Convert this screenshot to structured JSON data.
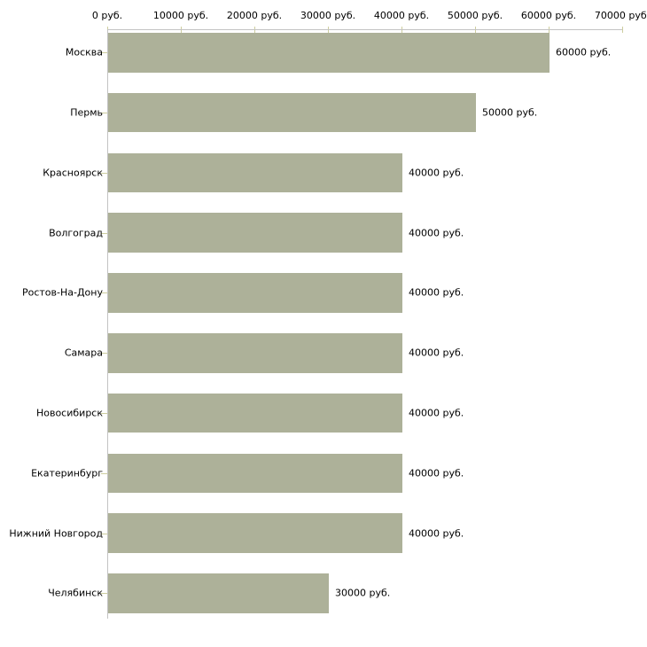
{
  "chart_data": {
    "type": "bar",
    "orientation": "horizontal",
    "title": "",
    "xlabel": "",
    "ylabel": "",
    "xlim": [
      0,
      70000
    ],
    "grid": false,
    "legend": false,
    "background": "#ffffff",
    "bar_color": "#adb199",
    "axis_line_color": "#c3c3c3",
    "tick_mark_color": "#cdcd9e",
    "text_color": "#000000",
    "x_ticks": [
      0,
      10000,
      20000,
      30000,
      40000,
      50000,
      60000,
      70000
    ],
    "x_tick_labels": [
      "0 руб.",
      "10000 руб.",
      "20000 руб.",
      "30000 руб.",
      "40000 руб.",
      "50000 руб.",
      "60000 руб.",
      "70000 руб."
    ],
    "categories": [
      "Москва",
      "Пермь",
      "Красноярск",
      "Волгоград",
      "Ростов-На-Дону",
      "Самара",
      "Новосибирск",
      "Екатеринбург",
      "Нижний Новгород",
      "Челябинск"
    ],
    "values": [
      60000,
      50000,
      40000,
      40000,
      40000,
      40000,
      40000,
      40000,
      40000,
      30000
    ],
    "value_labels": [
      "60000 руб.",
      "50000 руб.",
      "40000 руб.",
      "40000 руб.",
      "40000 руб.",
      "40000 руб.",
      "40000 руб.",
      "40000 руб.",
      "40000 руб.",
      "30000 руб."
    ]
  }
}
